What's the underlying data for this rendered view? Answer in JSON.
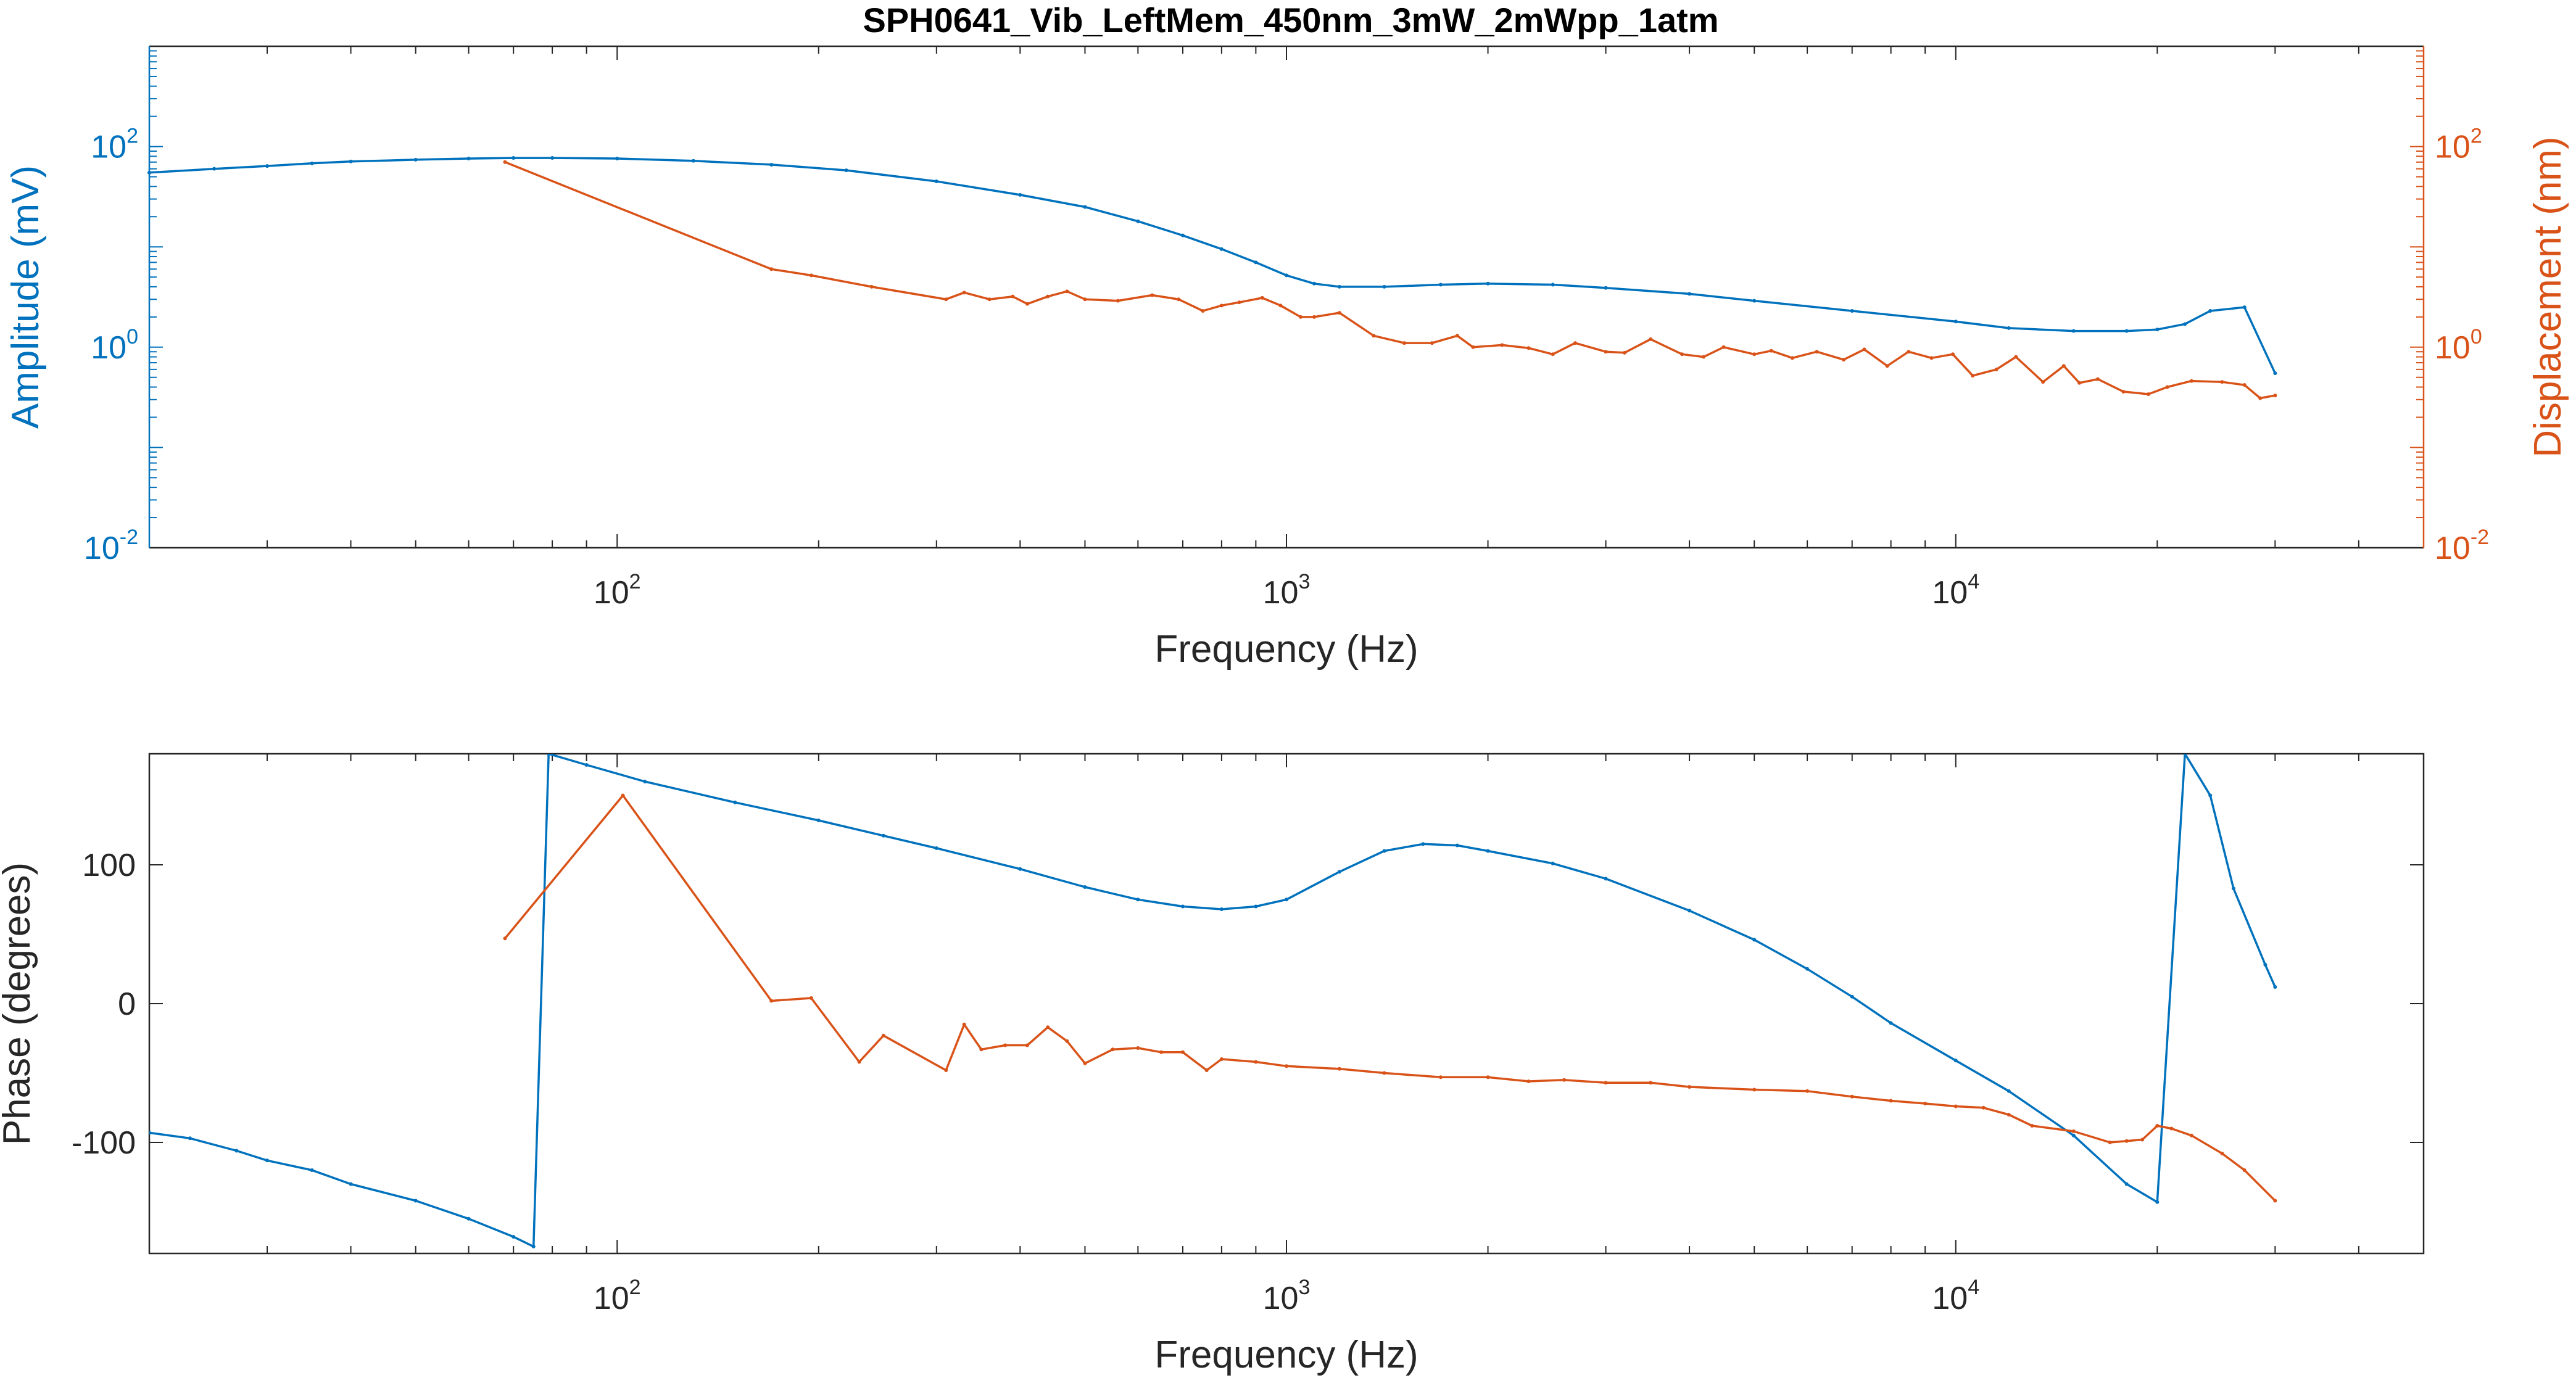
{
  "title": "SPH0641_Vib_LeftMem_450nm_3mW_2mWpp_1atm",
  "colors": {
    "blue": "#0072BD",
    "orange": "#D95319",
    "axis": "#262626",
    "grid_bg": "#ffffff"
  },
  "chart_data": [
    {
      "type": "line",
      "xlabel": "Frequency (Hz)",
      "ylabel_left": "Amplitude (mV)",
      "ylabel_right": "Displacement (nm)",
      "xscale": "log",
      "yscale": "log",
      "xlim": [
        20,
        50000
      ],
      "ylim_left": [
        0.01,
        1000
      ],
      "ylim_right": [
        0.01,
        1000
      ],
      "xticks": [
        {
          "base": "10",
          "exp": "2",
          "value": 100
        },
        {
          "base": "10",
          "exp": "3",
          "value": 1000
        },
        {
          "base": "10",
          "exp": "4",
          "value": 10000
        }
      ],
      "yticks_left": [
        {
          "base": "10",
          "exp": "-2",
          "value": 0.01
        },
        {
          "base": "10",
          "exp": "0",
          "value": 1
        },
        {
          "base": "10",
          "exp": "2",
          "value": 100
        }
      ],
      "yticks_right": [
        {
          "base": "10",
          "exp": "-2",
          "value": 0.01
        },
        {
          "base": "10",
          "exp": "0",
          "value": 1
        },
        {
          "base": "10",
          "exp": "2",
          "value": 100
        }
      ],
      "series": [
        {
          "axis": "left",
          "color": "#0072BD",
          "x": [
            20,
            25,
            30,
            35,
            40,
            50,
            60,
            70,
            80,
            100,
            130,
            170,
            220,
            300,
            400,
            500,
            600,
            700,
            800,
            900,
            1000,
            1100,
            1200,
            1400,
            1700,
            2000,
            2500,
            3000,
            4000,
            5000,
            7000,
            10000,
            12000,
            15000,
            18000,
            20000,
            22000,
            24000,
            27000,
            30000
          ],
          "y": [
            55,
            60,
            64,
            68,
            71,
            74,
            76,
            77,
            77,
            76,
            72,
            66,
            58,
            45,
            33,
            25,
            18,
            13,
            9.5,
            7.0,
            5.2,
            4.3,
            4.0,
            4.0,
            4.2,
            4.3,
            4.2,
            3.9,
            3.4,
            2.9,
            2.3,
            1.8,
            1.55,
            1.45,
            1.45,
            1.5,
            1.7,
            2.3,
            2.5,
            0.55
          ]
        },
        {
          "axis": "right",
          "color": "#D95319",
          "x": [
            68,
            170,
            195,
            240,
            310,
            330,
            360,
            390,
            410,
            440,
            470,
            500,
            560,
            630,
            690,
            750,
            800,
            850,
            920,
            980,
            1050,
            1100,
            1200,
            1350,
            1500,
            1650,
            1800,
            1900,
            2100,
            2300,
            2500,
            2700,
            3000,
            3200,
            3500,
            3900,
            4200,
            4500,
            5000,
            5300,
            5700,
            6200,
            6800,
            7300,
            7900,
            8500,
            9200,
            9900,
            10600,
            11500,
            12300,
            13500,
            14500,
            15300,
            16300,
            17800,
            19400,
            20700,
            22500,
            25000,
            27000,
            28500,
            30000
          ],
          "y": [
            70,
            6.0,
            5.2,
            4.0,
            3.0,
            3.5,
            3.0,
            3.2,
            2.7,
            3.2,
            3.6,
            3.0,
            2.9,
            3.3,
            3.0,
            2.3,
            2.6,
            2.8,
            3.1,
            2.6,
            2.0,
            2.0,
            2.2,
            1.3,
            1.1,
            1.1,
            1.3,
            1.0,
            1.05,
            0.98,
            0.85,
            1.1,
            0.9,
            0.88,
            1.2,
            0.85,
            0.8,
            1.0,
            0.85,
            0.92,
            0.78,
            0.9,
            0.75,
            0.95,
            0.65,
            0.9,
            0.78,
            0.85,
            0.52,
            0.6,
            0.8,
            0.45,
            0.65,
            0.44,
            0.48,
            0.36,
            0.34,
            0.4,
            0.46,
            0.45,
            0.42,
            0.31,
            0.33
          ]
        }
      ]
    },
    {
      "type": "line",
      "xlabel": "Frequency (Hz)",
      "ylabel": "Phase (degrees)",
      "xscale": "log",
      "xlim": [
        20,
        50000
      ],
      "ylim": [
        -180,
        180
      ],
      "xticks": [
        {
          "base": "10",
          "exp": "2",
          "value": 100
        },
        {
          "base": "10",
          "exp": "3",
          "value": 1000
        },
        {
          "base": "10",
          "exp": "4",
          "value": 10000
        }
      ],
      "yticks": [
        {
          "label": "-100",
          "value": -100
        },
        {
          "label": "0",
          "value": 0
        },
        {
          "label": "100",
          "value": 100
        }
      ],
      "series": [
        {
          "color": "#0072BD",
          "x": [
            20,
            23,
            27,
            30,
            35,
            40,
            50,
            60,
            70,
            75,
            79,
            90,
            110,
            150,
            200,
            250,
            300,
            400,
            500,
            600,
            700,
            800,
            900,
            1000,
            1200,
            1400,
            1600,
            1800,
            2000,
            2500,
            3000,
            4000,
            5000,
            6000,
            7000,
            8000,
            10000,
            12000,
            15000,
            18000,
            20000,
            22000,
            24000,
            26000,
            29000,
            30000
          ],
          "y": [
            -93,
            -97,
            -106,
            -113,
            -120,
            -130,
            -142,
            -155,
            -168,
            -175,
            180,
            172,
            160,
            145,
            132,
            121,
            112,
            97,
            84,
            75,
            70,
            68,
            70,
            75,
            95,
            110,
            115,
            114,
            110,
            101,
            90,
            67,
            46,
            25,
            5,
            -14,
            -41,
            -63,
            -95,
            -130,
            -143,
            180,
            150,
            83,
            28,
            12
          ]
        },
        {
          "color": "#D95319",
          "x": [
            68,
            102,
            170,
            195,
            230,
            250,
            310,
            330,
            350,
            380,
            410,
            440,
            470,
            500,
            550,
            600,
            650,
            700,
            760,
            800,
            900,
            1000,
            1200,
            1400,
            1700,
            2000,
            2300,
            2600,
            3000,
            3500,
            4000,
            5000,
            6000,
            7000,
            8000,
            9000,
            10000,
            11000,
            12000,
            13000,
            15000,
            17000,
            18000,
            19000,
            20000,
            21000,
            22500,
            25000,
            27000,
            30000
          ],
          "y": [
            47,
            150,
            2,
            4,
            -42,
            -23,
            -48,
            -15,
            -33,
            -30,
            -30,
            -17,
            -27,
            -43,
            -33,
            -32,
            -35,
            -35,
            -48,
            -40,
            -42,
            -45,
            -47,
            -50,
            -53,
            -53,
            -56,
            -55,
            -57,
            -57,
            -60,
            -62,
            -63,
            -67,
            -70,
            -72,
            -74,
            -75,
            -80,
            -88,
            -92,
            -100,
            -99,
            -98,
            -88,
            -90,
            -95,
            -108,
            -120,
            -142
          ]
        }
      ]
    }
  ]
}
